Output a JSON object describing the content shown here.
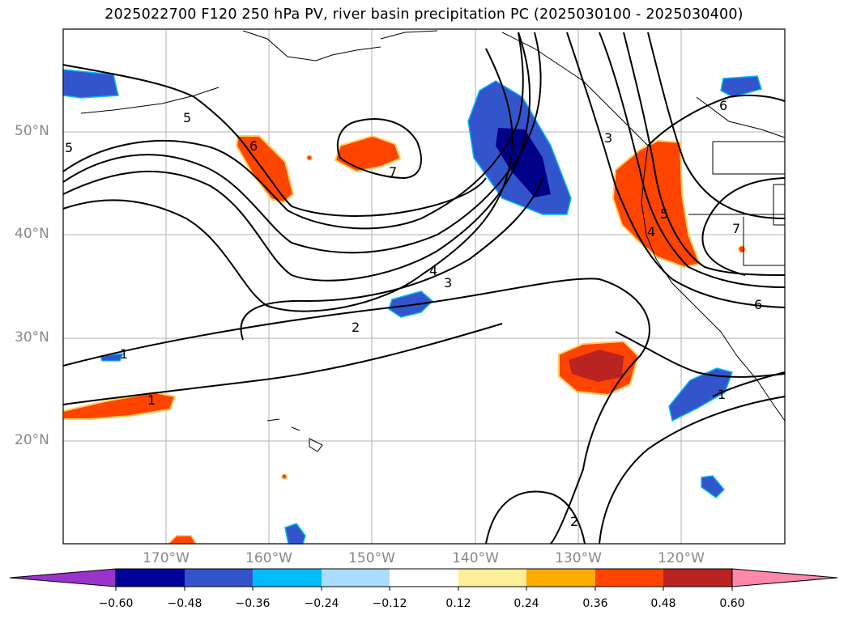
{
  "title": "2025022700 F120 250 hPa PV, river basin precipitation PC (2025030100 - 2025030400)",
  "lat_labels": [
    "50°N",
    "40°N",
    "30°N",
    "20°N"
  ],
  "lon_labels": [
    "170°W",
    "160°W",
    "150°W",
    "140°W",
    "130°W",
    "120°W"
  ],
  "contour_labels": [
    "1",
    "1",
    "1",
    "2",
    "2",
    "3",
    "4",
    "5",
    "5",
    "6",
    "6",
    "6",
    "7",
    "7",
    "3",
    "4",
    "5"
  ],
  "colorbar": {
    "ticks": [
      "−0.60",
      "−0.48",
      "−0.36",
      "−0.24",
      "−0.12",
      "0.12",
      "0.24",
      "0.36",
      "0.48",
      "0.60"
    ],
    "colors": [
      "#9933cc",
      "#000099",
      "#3355cc",
      "#00bbff",
      "#aaddff",
      "#ffffff",
      "#ffee99",
      "#ffaa00",
      "#ff4400",
      "#bb2222",
      "#ff88aa"
    ]
  },
  "colors": {
    "strong_negative": "#000088",
    "negative": "#3355cc",
    "weak_negative": "#00bbff",
    "positive": "#ff4400",
    "strong_positive": "#bb2222",
    "weak_positive": "#ffcc55",
    "contour": "#000000",
    "grid": "#b0b0b0",
    "axis_label": "#888888"
  }
}
